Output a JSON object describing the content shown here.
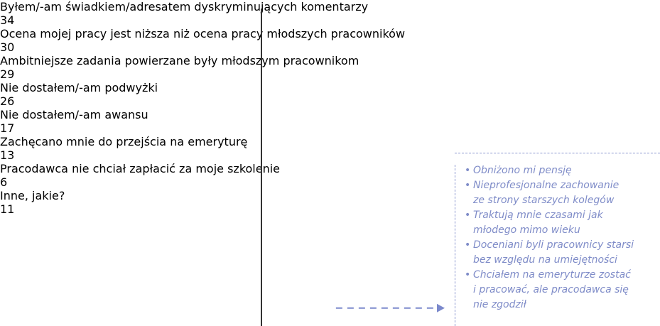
{
  "chart_data": {
    "type": "bar",
    "orientation": "horizontal",
    "categories": [
      "Byłem/-am świadkiem/adresatem\ndyskryminujących komentarzy",
      "Ocena mojej pracy jest niższa\nniż ocena pracy młodszych pracowników",
      "Ambitniejsze zadania powierzane\nbyły młodszym pracownikom",
      "Nie dostałem/-am podwyżki",
      "Nie dostałem/-am awansu",
      "Zachęcano mnie do przejścia\nna emeryturę",
      "Pracodawca nie chciał zapłacić\nza moje szkolenie",
      "Inne, jakie?"
    ],
    "values": [
      34,
      30,
      29,
      26,
      17,
      13,
      6,
      11
    ],
    "colors": [
      "#4b5196",
      "#4b5196",
      "#4b5196",
      "#4b5196",
      "#4b5196",
      "#4b5196",
      "#4b5196",
      "#7b89cc"
    ],
    "annotation": {
      "items": [
        "Obniżono mi pensję",
        "Nieprofesjonalne zachowanie\nze strony starszych kolegów",
        "Traktują mnie czasami jak\nmłodego mimo wieku",
        "Doceniani byli pracownicy starsi\nbez względu na umiejętności",
        "Chciałem na emeryturze zostać\ni pracować, ale pracodawca się\nnie zgodził"
      ]
    }
  }
}
